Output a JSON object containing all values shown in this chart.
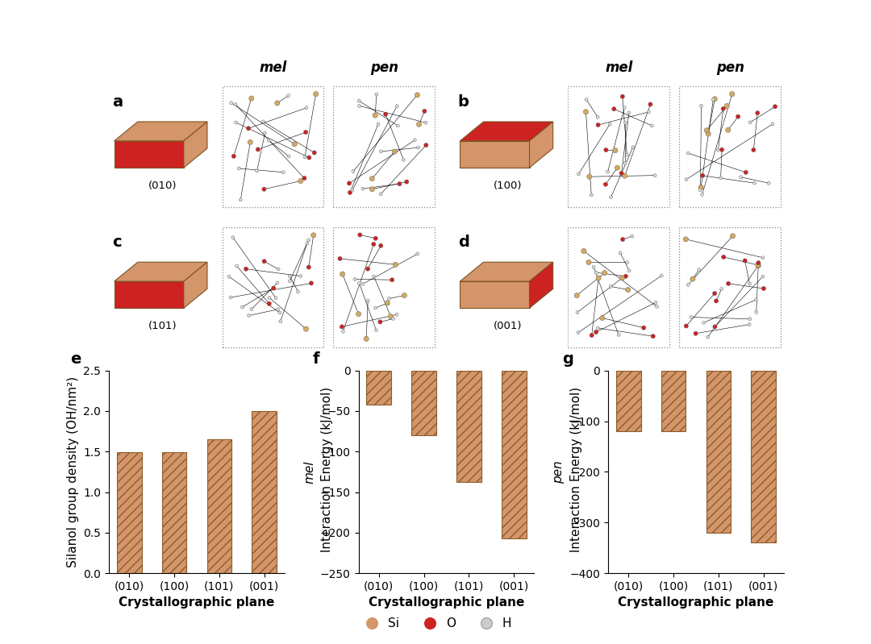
{
  "categories": [
    "(010)",
    "(100)",
    "(101)",
    "(001)"
  ],
  "silanol_values": [
    1.49,
    1.49,
    1.65,
    2.0
  ],
  "mel_values": [
    -42,
    -80,
    -138,
    -207
  ],
  "pen_values": [
    -120,
    -120,
    -320,
    -340
  ],
  "bar_color": "#D4956A",
  "bar_edge_color": "#8B5E2A",
  "hatch": "///",
  "panel_label_fontsize": 14,
  "axis_label_fontsize": 11,
  "tick_label_fontsize": 10,
  "e_ylabel": "Silanol group density (OH/nm²)",
  "xlabel": "Crystallographic plane",
  "e_ylim": [
    0,
    2.5
  ],
  "f_ylim": [
    -250,
    0
  ],
  "g_ylim": [
    -400,
    0
  ],
  "e_yticks": [
    0.0,
    0.5,
    1.0,
    1.5,
    2.0,
    2.5
  ],
  "f_yticks": [
    0,
    -50,
    -100,
    -150,
    -200,
    -250
  ],
  "g_yticks": [
    0,
    -100,
    -200,
    -300,
    -400
  ],
  "crystal_shape_color": "#D4956A",
  "crystal_red_face_color": "#CC2222",
  "crystal_edge_color": "#7B5220",
  "legend_items": [
    {
      "label": "Si",
      "color": "#D4956A",
      "edge": "#D4956A"
    },
    {
      "label": "O",
      "color": "#CC2222",
      "edge": "#CC2222"
    },
    {
      "label": "H",
      "color": "#CCCCCC",
      "edge": "#999999"
    }
  ],
  "background_color": "#ffffff",
  "top_configs": [
    {
      "label": "a",
      "plane": "(010)",
      "face": 0,
      "show_mol_labels": true
    },
    {
      "label": "b",
      "plane": "(100)",
      "face": 1,
      "show_mol_labels": true
    },
    {
      "label": "c",
      "plane": "(101)",
      "face": 2,
      "show_mol_labels": false
    },
    {
      "label": "d",
      "plane": "(001)",
      "face": 3,
      "show_mol_labels": false
    }
  ]
}
